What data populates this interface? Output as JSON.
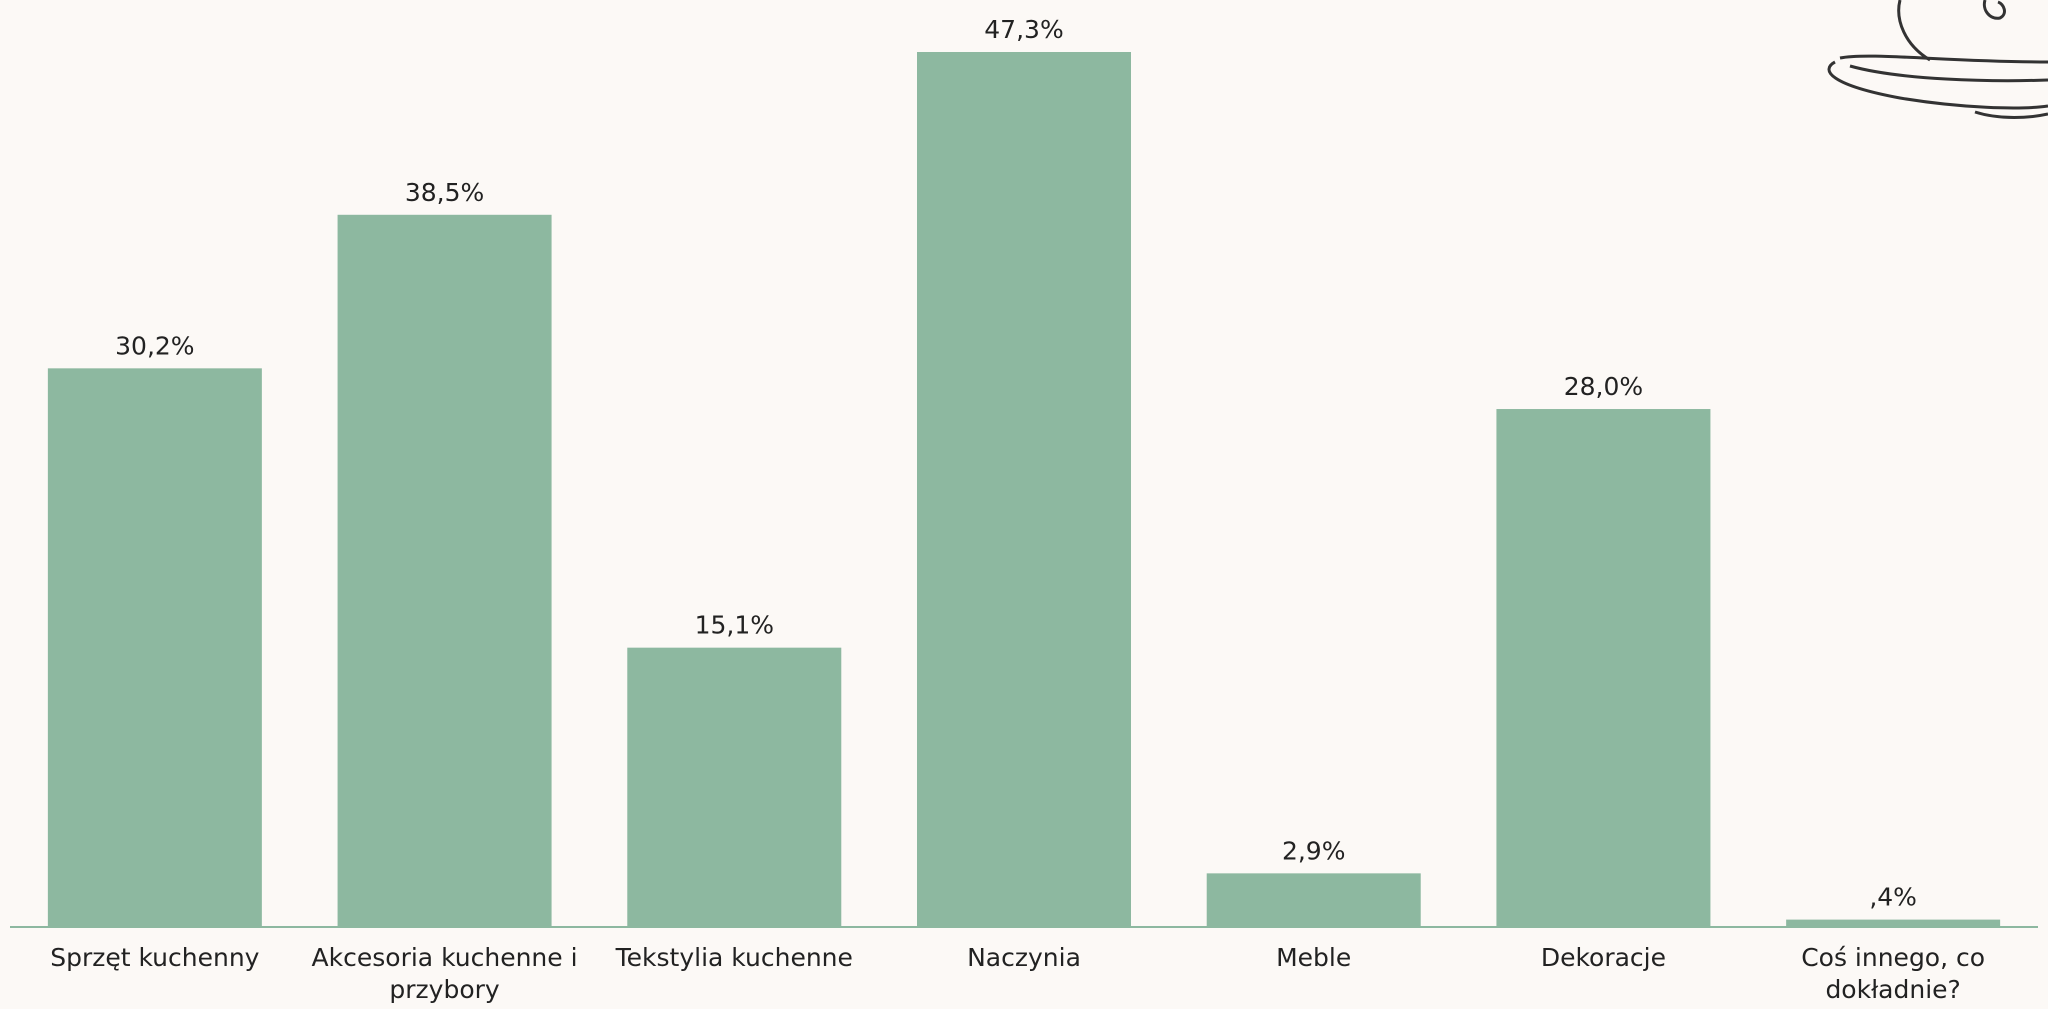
{
  "chart_data": {
    "type": "bar",
    "categories": [
      "Sprzęt kuchenny",
      "Akcesoria kuchenne i przybory",
      "Tekstylia kuchenne",
      "Naczynia",
      "Meble",
      "Dekoracje",
      "Coś innego, co dokładnie?"
    ],
    "values": [
      30.2,
      38.5,
      15.1,
      47.3,
      2.9,
      28.0,
      0.4
    ],
    "value_labels": [
      "30,2%",
      "38,5%",
      "15,1%",
      "47,3%",
      "2,9%",
      "28,0%",
      ",4%"
    ],
    "color": "#8db8a0"
  }
}
